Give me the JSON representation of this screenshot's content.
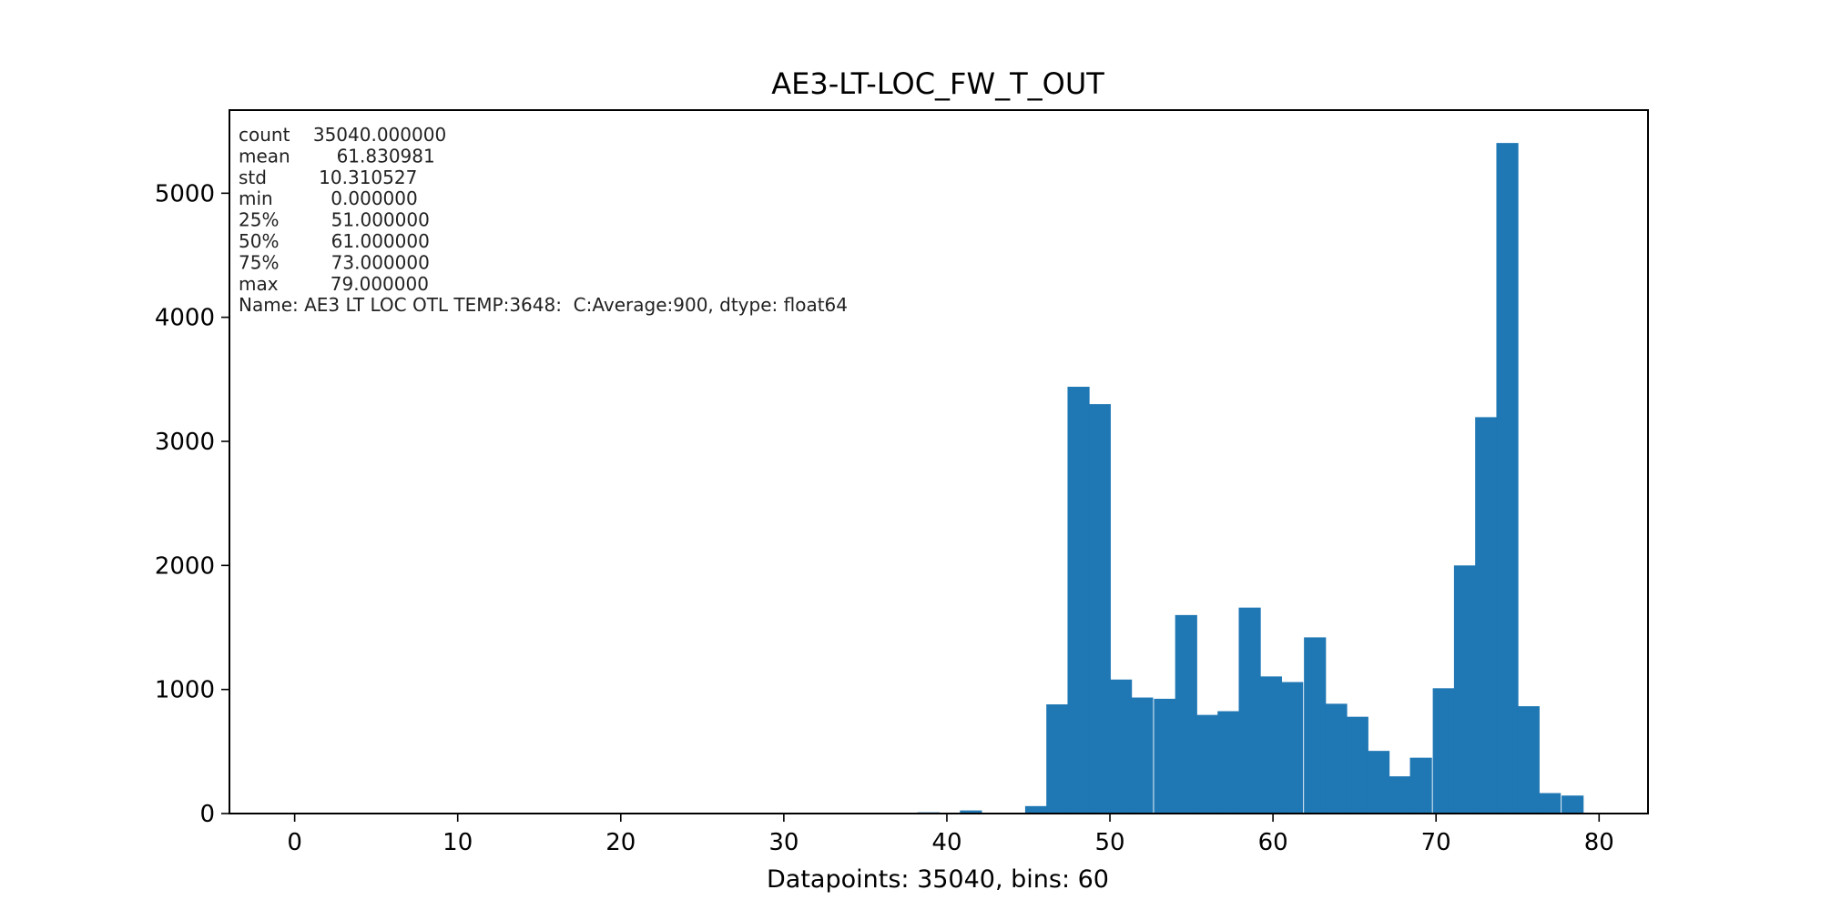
{
  "chart_data": {
    "type": "bar",
    "title": "AE3-LT-LOC_FW_T_OUT",
    "xlabel": "Datapoints: 35040, bins: 60",
    "ylabel": "",
    "xlim": [
      -4,
      83
    ],
    "ylim": [
      0,
      5670
    ],
    "bin_width": 1.3167,
    "x_ticks": [
      0,
      10,
      20,
      30,
      40,
      50,
      60,
      70,
      80
    ],
    "y_ticks": [
      0,
      1000,
      2000,
      3000,
      4000,
      5000
    ],
    "x_tick_labels": [
      "0",
      "10",
      "20",
      "30",
      "40",
      "50",
      "60",
      "70",
      "80"
    ],
    "y_tick_labels": [
      "0",
      "1000",
      "2000",
      "3000",
      "4000",
      "5000"
    ],
    "bins": [
      {
        "x_start": 38.2,
        "value": 10
      },
      {
        "x_start": 40.8,
        "value": 25
      },
      {
        "x_start": 44.8,
        "value": 60
      },
      {
        "x_start": 46.1,
        "value": 880
      },
      {
        "x_start": 47.4,
        "value": 3440
      },
      {
        "x_start": 48.7,
        "value": 3300
      },
      {
        "x_start": 50.0,
        "value": 1080
      },
      {
        "x_start": 51.3,
        "value": 935
      },
      {
        "x_start": 52.7,
        "value": 925
      },
      {
        "x_start": 54.0,
        "value": 1600
      },
      {
        "x_start": 55.3,
        "value": 795
      },
      {
        "x_start": 56.6,
        "value": 825
      },
      {
        "x_start": 57.9,
        "value": 1660
      },
      {
        "x_start": 59.2,
        "value": 1105
      },
      {
        "x_start": 60.5,
        "value": 1060
      },
      {
        "x_start": 61.9,
        "value": 1420
      },
      {
        "x_start": 63.2,
        "value": 885
      },
      {
        "x_start": 64.5,
        "value": 780
      },
      {
        "x_start": 65.8,
        "value": 505
      },
      {
        "x_start": 67.1,
        "value": 300
      },
      {
        "x_start": 68.4,
        "value": 450
      },
      {
        "x_start": 69.8,
        "value": 1010
      },
      {
        "x_start": 71.1,
        "value": 2000
      },
      {
        "x_start": 72.4,
        "value": 3195
      },
      {
        "x_start": 73.7,
        "value": 5405
      },
      {
        "x_start": 75.0,
        "value": 865
      },
      {
        "x_start": 76.3,
        "value": 165
      },
      {
        "x_start": 77.7,
        "value": 145
      }
    ],
    "stats_lines": [
      "count    35040.000000",
      "mean        61.830981",
      "std         10.310527",
      "min          0.000000",
      "25%         51.000000",
      "50%         61.000000",
      "75%         73.000000",
      "max         79.000000",
      "Name: AE3 LT LOC OTL TEMP:3648:  C:Average:900, dtype: float64"
    ],
    "bar_color": "#1f77b4",
    "grid": false
  }
}
